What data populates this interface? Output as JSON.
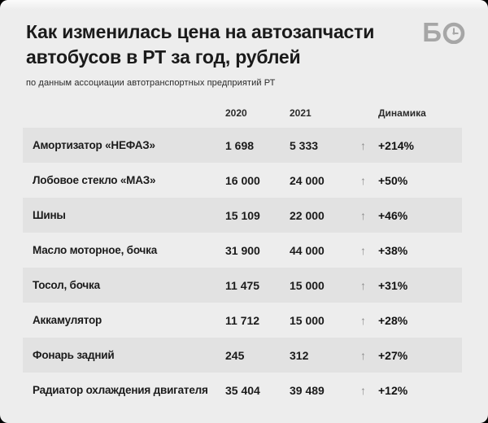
{
  "page": {
    "background_color": "#000000",
    "card_color": "#ededed",
    "stripe_color": "#e2e2e2",
    "accent_text_color": "#1a1a1a",
    "muted_gray": "#8c8c8c"
  },
  "header": {
    "title_lines": [
      "Как изменилась цена на автозапчасти",
      "автобусов в РТ за год, рублей"
    ],
    "subtitle": "по данным ассоциации автотранспортных предприятий РТ",
    "logo": {
      "letter": "Б",
      "icon": "clock-in-circle-icon",
      "color": "#a6a6a6"
    }
  },
  "table": {
    "columns": [
      "2020",
      "2021",
      "Динамика"
    ],
    "up_arrow_glyph": "↑",
    "rows": [
      {
        "name": "Амортизатор «НЕФАЗ»",
        "y2020": "1 698",
        "y2021": "5 333",
        "change": "+214%"
      },
      {
        "name": "Лобовое стекло «МАЗ»",
        "y2020": "16 000",
        "y2021": "24 000",
        "change": "+50%"
      },
      {
        "name": "Шины",
        "y2020": "15 109",
        "y2021": "22 000",
        "change": "+46%"
      },
      {
        "name": "Масло моторное, бочка",
        "y2020": "31 900",
        "y2021": "44 000",
        "change": "+38%"
      },
      {
        "name": "Тосол, бочка",
        "y2020": "11 475",
        "y2021": "15 000",
        "change": "+31%"
      },
      {
        "name": "Аккамулятор",
        "y2020": "11 712",
        "y2021": "15 000",
        "change": "+28%"
      },
      {
        "name": "Фонарь задний",
        "y2020": "245",
        "y2021": "312",
        "change": "+27%"
      },
      {
        "name": "Радиатор охлаждения двигателя",
        "y2020": "35 404",
        "y2021": "39 489",
        "change": "+12%"
      }
    ]
  },
  "chart_data": {
    "type": "table",
    "title": "Как изменилась цена на автозапчасти автобусов в РТ за год, рублей",
    "subtitle": "по данным ассоциации автотранспортных предприятий РТ",
    "categories": [
      "Амортизатор «НЕФАЗ»",
      "Лобовое стекло «МАЗ»",
      "Шины",
      "Масло моторное, бочка",
      "Тосол, бочка",
      "Аккамулятор",
      "Фонарь задний",
      "Радиатор охлаждения двигателя"
    ],
    "series": [
      {
        "name": "2020",
        "values": [
          1698,
          16000,
          15109,
          31900,
          11475,
          11712,
          245,
          35404
        ]
      },
      {
        "name": "2021",
        "values": [
          5333,
          24000,
          22000,
          44000,
          15000,
          15000,
          312,
          39489
        ]
      },
      {
        "name": "Динамика",
        "values": [
          "+214%",
          "+50%",
          "+46%",
          "+38%",
          "+31%",
          "+28%",
          "+27%",
          "+12%"
        ]
      }
    ],
    "units": "рублей",
    "direction": "all values increased (up arrows)"
  }
}
